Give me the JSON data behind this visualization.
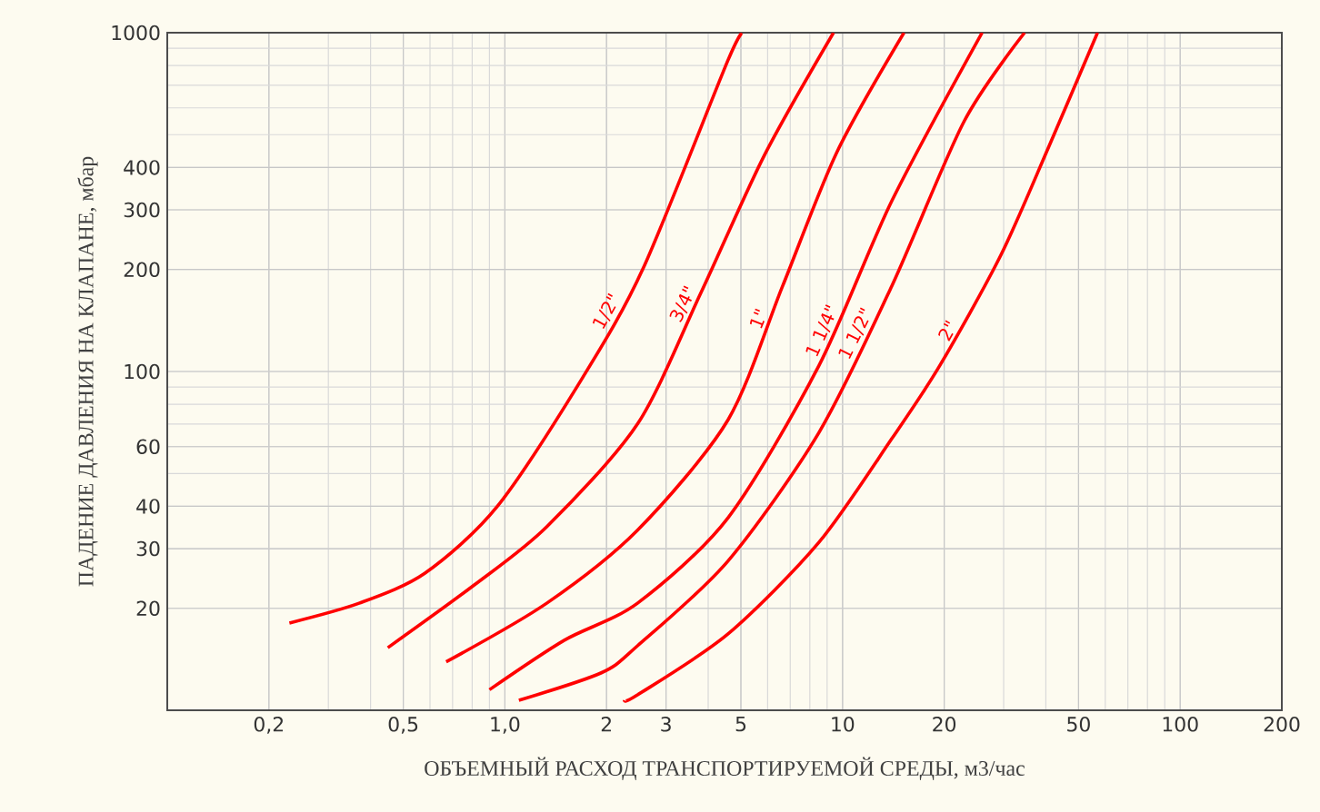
{
  "chart_data": {
    "type": "line",
    "xlabel": "ОБЪЕМНЫЙ РАСХОД ТРАНСПОРТИРУЕМОЙ СРЕДЫ, м3/час",
    "ylabel": "ПАДЕНИЕ ДАВЛЕНИЯ НА КЛАПАНЕ, мбар",
    "log": "xy",
    "grid": true,
    "legend": false,
    "xlim": [
      0.1,
      200
    ],
    "ylim": [
      10,
      1000
    ],
    "xticks": [
      {
        "value": 0.2,
        "label": "0,2"
      },
      {
        "value": 0.5,
        "label": "0,5"
      },
      {
        "value": 1,
        "label": "1,0"
      },
      2,
      3,
      5,
      10,
      20,
      50,
      100,
      200
    ],
    "yticks": [
      20,
      30,
      40,
      60,
      100,
      200,
      300,
      400,
      1000
    ],
    "series": [
      {
        "name": "1/2\"",
        "color": "#ff0000",
        "x": [
          0.23,
          0.37,
          0.58,
          0.95,
          1.7,
          2.57,
          4.58,
          5.08
        ],
        "values": [
          18.1,
          20.7,
          25.4,
          40,
          96,
          202,
          830,
          1000
        ]
      },
      {
        "name": "3/4\"",
        "color": "#ff0000",
        "x": [
          0.45,
          0.81,
          1.33,
          2.47,
          3.81,
          5.87,
          9.4
        ],
        "values": [
          15.3,
          23.4,
          34.8,
          70,
          171,
          435,
          1000
        ]
      },
      {
        "name": "1\"",
        "color": "#ff0000",
        "x": [
          0.67,
          1.33,
          2.47,
          4.58,
          6.65,
          9.63,
          15.2
        ],
        "values": [
          13.9,
          20.7,
          34,
          72,
          179,
          445,
          1000
        ]
      },
      {
        "name": "1 1/4\"",
        "color": "#ff0000",
        "x": [
          0.9,
          1.5,
          2.47,
          4.58,
          8.51,
          14,
          25.9
        ],
        "values": [
          11.5,
          16.1,
          20.7,
          37,
          104,
          319,
          1000
        ]
      },
      {
        "name": "1 1/2\"",
        "color": "#ff0000",
        "x": [
          1.1,
          1.93,
          2.47,
          4.58,
          8.51,
          14,
          22.9,
          34.6
        ],
        "values": [
          10.7,
          12.9,
          15.5,
          27.6,
          66,
          179,
          547,
          1000
        ]
      },
      {
        "name": "2\"",
        "color": "#ff0000",
        "x": [
          2.26,
          2.47,
          4.58,
          8.51,
          14,
          19.4,
          29.4,
          40.9,
          56.9
        ],
        "values": [
          10.7,
          11.1,
          16.8,
          31.3,
          63.4,
          104,
          220,
          463,
          1000
        ]
      }
    ]
  }
}
